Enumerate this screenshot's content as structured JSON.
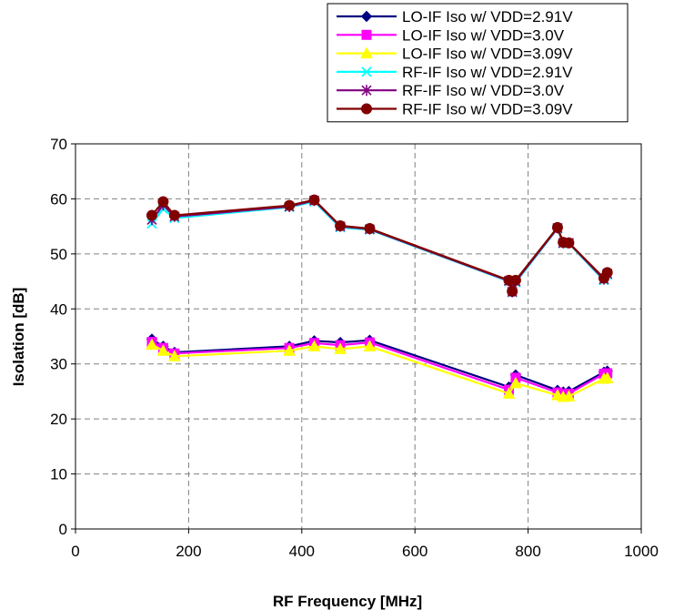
{
  "chart_data": {
    "type": "line",
    "xlabel": "RF  Frequency [MHz]",
    "ylabel": "Isolation [dB]",
    "xlim": [
      0,
      1000
    ],
    "ylim": [
      0,
      70
    ],
    "xticks": [
      "0",
      "200",
      "400",
      "600",
      "800",
      "1000"
    ],
    "yticks": [
      "0",
      "10",
      "20",
      "30",
      "40",
      "50",
      "60",
      "70"
    ],
    "grid": true,
    "legend_position": "top-right",
    "series": [
      {
        "name": "LO-IF Iso w/ VDD=2.91V",
        "color": "#000080",
        "marker": "diamond",
        "x": [
          135,
          155,
          175,
          378,
          422,
          468,
          520,
          766,
          778,
          852,
          862,
          872,
          934,
          940
        ],
        "y": [
          34.5,
          33.2,
          32.1,
          33.2,
          34.2,
          33.9,
          34.3,
          25.8,
          28.0,
          25.2,
          24.9,
          25.0,
          28.5,
          28.7
        ]
      },
      {
        "name": "LO-IF Iso w/ VDD=3.0V",
        "color": "#ff00ff",
        "marker": "square",
        "x": [
          135,
          155,
          175,
          378,
          422,
          468,
          520,
          766,
          778,
          852,
          862,
          872,
          934,
          940
        ],
        "y": [
          34.0,
          32.9,
          31.9,
          32.9,
          33.8,
          33.4,
          33.9,
          25.3,
          27.5,
          24.8,
          24.5,
          24.6,
          28.2,
          28.3
        ]
      },
      {
        "name": "LO-IF Iso w/ VDD=3.09V",
        "color": "#ffff00",
        "marker": "triangle",
        "x": [
          135,
          155,
          175,
          378,
          422,
          468,
          520,
          766,
          778,
          852,
          862,
          872,
          934,
          940
        ],
        "y": [
          33.5,
          32.4,
          31.4,
          32.4,
          33.2,
          32.7,
          33.2,
          24.6,
          26.5,
          24.3,
          24.0,
          24.1,
          27.3,
          27.4
        ]
      },
      {
        "name": "RF-IF Iso w/ VDD=2.91V",
        "color": "#00ffff",
        "marker": "x",
        "x": [
          135,
          155,
          175,
          378,
          422,
          468,
          520,
          766,
          772,
          778,
          852,
          862,
          872,
          934,
          940
        ],
        "y": [
          55.5,
          58.2,
          56.5,
          58.5,
          59.5,
          54.8,
          54.4,
          45.0,
          43.0,
          44.8,
          54.6,
          51.9,
          51.9,
          45.2,
          46.2
        ]
      },
      {
        "name": "RF-IF Iso w/ VDD=3.0V",
        "color": "#800080",
        "marker": "star",
        "x": [
          135,
          155,
          175,
          378,
          422,
          468,
          520,
          766,
          772,
          778,
          852,
          862,
          872,
          934,
          940
        ],
        "y": [
          56.2,
          58.9,
          56.8,
          58.6,
          59.7,
          55.0,
          54.5,
          45.1,
          43.1,
          45.0,
          54.7,
          52.0,
          52.0,
          45.4,
          46.4
        ]
      },
      {
        "name": "RF-IF Iso w/ VDD=3.09V",
        "color": "#800000",
        "marker": "circle",
        "x": [
          135,
          155,
          175,
          378,
          422,
          468,
          520,
          766,
          772,
          778,
          852,
          862,
          872,
          934,
          940
        ],
        "y": [
          57.0,
          59.5,
          57.0,
          58.8,
          59.8,
          55.1,
          54.6,
          45.2,
          43.2,
          45.2,
          54.8,
          52.1,
          52.0,
          45.6,
          46.6
        ]
      }
    ]
  }
}
